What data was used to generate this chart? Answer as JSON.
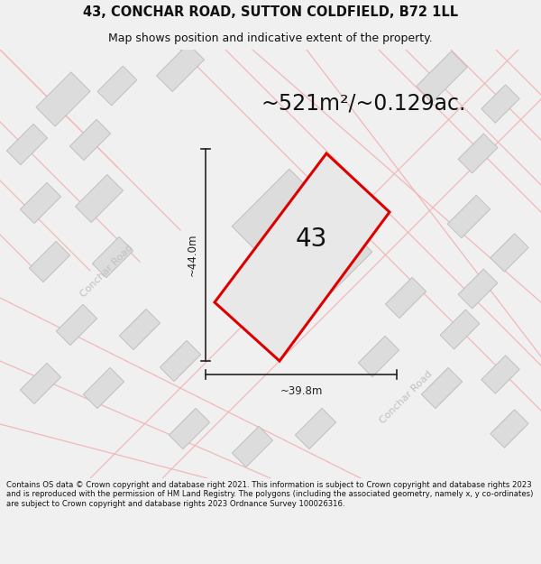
{
  "title_line1": "43, CONCHAR ROAD, SUTTON COLDFIELD, B72 1LL",
  "title_line2": "Map shows position and indicative extent of the property.",
  "area_label": "~521m²/~0.129ac.",
  "width_label": "~39.8m",
  "height_label": "~44.0m",
  "number_label": "43",
  "road_label1": "Conchar Road",
  "road_label2": "Conchar Road",
  "footer_text": "Contains OS data © Crown copyright and database right 2021. This information is subject to Crown copyright and database rights 2023 and is reproduced with the permission of HM Land Registry. The polygons (including the associated geometry, namely x, y co-ordinates) are subject to Crown copyright and database rights 2023 Ordnance Survey 100026316.",
  "bg_color": "#f0f0f0",
  "map_bg": "#ffffff",
  "building_fill": "#dcdcdc",
  "building_stroke": "#bbbbbb",
  "plot_stroke": "#dd0000",
  "plot_fill": "#e8e8e8",
  "road_line_color": "#f2b8b8",
  "road_outline_color": "#cccccc",
  "dim_color": "#222222",
  "title_color": "#111111",
  "road_text_color": "#c0c0c0",
  "title_fontsize": 10.5,
  "subtitle_fontsize": 9.0,
  "area_fontsize": 17,
  "number_fontsize": 20,
  "dim_fontsize": 8.5,
  "road_fontsize": 8,
  "footer_fontsize": 6.1
}
